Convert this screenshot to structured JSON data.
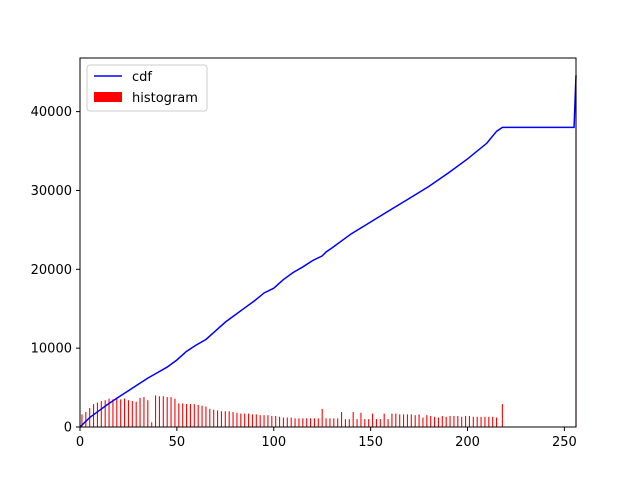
{
  "chart_data": {
    "type": "line+bar",
    "title": "",
    "xlabel": "",
    "ylabel": "",
    "xlim": [
      0,
      256
    ],
    "ylim": [
      0,
      46800
    ],
    "xticks": [
      0,
      50,
      100,
      150,
      200,
      250
    ],
    "yticks": [
      0,
      10000,
      20000,
      30000,
      40000
    ],
    "grid": false,
    "legend_position": "top-left",
    "legend": [
      {
        "label": "cdf",
        "kind": "line",
        "color": "#0000ff"
      },
      {
        "label": "histogram",
        "kind": "bar",
        "color": "#ff0000"
      }
    ],
    "cdf": {
      "name": "cdf",
      "color": "#0000ff",
      "x": [
        0,
        5,
        10,
        15,
        20,
        25,
        30,
        35,
        40,
        45,
        50,
        55,
        60,
        65,
        70,
        75,
        80,
        85,
        90,
        95,
        100,
        105,
        110,
        115,
        120,
        125,
        127,
        130,
        140,
        150,
        160,
        170,
        180,
        190,
        200,
        210,
        215,
        218,
        250,
        255,
        256
      ],
      "y": [
        0,
        1200,
        2100,
        3000,
        3800,
        4600,
        5400,
        6200,
        6900,
        7600,
        8500,
        9600,
        10400,
        11100,
        12200,
        13300,
        14200,
        15100,
        16000,
        17000,
        17600,
        18700,
        19600,
        20300,
        21100,
        21700,
        22200,
        22700,
        24500,
        26000,
        27500,
        29000,
        30500,
        32200,
        34000,
        36000,
        37500,
        38000,
        38000,
        38000,
        44600
      ]
    },
    "histogram": {
      "name": "histogram",
      "color": "#ff0000",
      "x": [
        1,
        3,
        5,
        7,
        9,
        11,
        13,
        15,
        17,
        19,
        21,
        23,
        25,
        27,
        29,
        31,
        33,
        35,
        37,
        39,
        41,
        43,
        45,
        47,
        49,
        51,
        53,
        55,
        57,
        59,
        61,
        63,
        65,
        67,
        69,
        71,
        73,
        75,
        77,
        79,
        81,
        83,
        85,
        87,
        89,
        91,
        93,
        95,
        97,
        99,
        101,
        103,
        105,
        107,
        109,
        111,
        113,
        115,
        117,
        119,
        121,
        123,
        125,
        127,
        129,
        131,
        133,
        135,
        137,
        139,
        141,
        143,
        145,
        147,
        149,
        151,
        153,
        155,
        157,
        159,
        161,
        163,
        165,
        167,
        169,
        171,
        173,
        175,
        177,
        179,
        181,
        183,
        185,
        187,
        189,
        191,
        193,
        195,
        197,
        199,
        201,
        203,
        205,
        207,
        209,
        211,
        213,
        215,
        218,
        256
      ],
      "values": [
        1600,
        1900,
        2400,
        2900,
        3100,
        3300,
        3400,
        3600,
        3500,
        3600,
        3500,
        3600,
        3400,
        3300,
        3200,
        3700,
        3800,
        3400,
        600,
        4000,
        3900,
        3900,
        3800,
        3800,
        3600,
        3000,
        3000,
        2900,
        2900,
        2900,
        2800,
        2700,
        2600,
        2300,
        2200,
        2100,
        2000,
        2000,
        2000,
        1900,
        1800,
        1700,
        1700,
        1700,
        1600,
        1600,
        1500,
        1500,
        1500,
        1400,
        1400,
        1300,
        1200,
        1200,
        1200,
        1100,
        1100,
        1100,
        1100,
        1100,
        1100,
        1100,
        2300,
        1100,
        1100,
        1100,
        1100,
        1900,
        1000,
        1000,
        1900,
        1000,
        1800,
        1000,
        1000,
        1700,
        1000,
        1000,
        1700,
        1000,
        1700,
        1700,
        1600,
        1600,
        1600,
        1600,
        1500,
        1600,
        1200,
        1500,
        1400,
        1300,
        1200,
        1400,
        1300,
        1400,
        1400,
        1400,
        1300,
        1400,
        1400,
        1300,
        1300,
        1300,
        1300,
        1300,
        1300,
        1200,
        2900,
        44600
      ]
    }
  }
}
